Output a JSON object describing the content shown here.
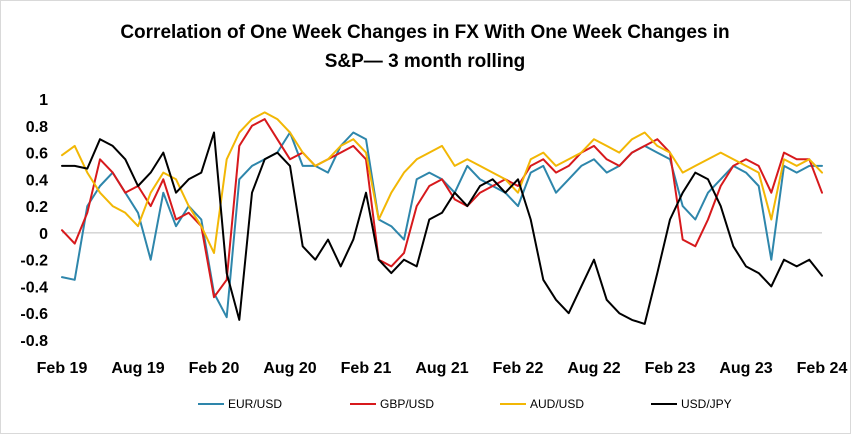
{
  "chart_data": {
    "type": "line",
    "title": "Correlation of One Week Changes in FX With One Week Changes in",
    "subtitle": "S&P— 3 month rolling",
    "xlabel": "",
    "ylabel": "",
    "ylim": [
      -0.8,
      1
    ],
    "yticks": [
      "1",
      "0.8",
      "0.6",
      "0.4",
      "0.2",
      "0",
      "-0.2",
      "-0.4",
      "-0.6",
      "-0.8"
    ],
    "xticks": [
      "Feb 19",
      "Aug 19",
      "Feb 20",
      "Aug 20",
      "Feb 21",
      "Aug 21",
      "Feb 22",
      "Aug 22",
      "Feb 23",
      "Aug 23",
      "Feb 24"
    ],
    "xlim": [
      "2019-02",
      "2024-02"
    ],
    "grid": false,
    "legend_position": "bottom",
    "series": [
      {
        "name": "EUR/USD",
        "color": "#2E86AB",
        "x": [
          "2019-02",
          "2019-03",
          "2019-04",
          "2019-05",
          "2019-06",
          "2019-07",
          "2019-08",
          "2019-09",
          "2019-10",
          "2019-11",
          "2019-12",
          "2020-01",
          "2020-02",
          "2020-03",
          "2020-04",
          "2020-05",
          "2020-06",
          "2020-07",
          "2020-08",
          "2020-09",
          "2020-10",
          "2020-11",
          "2020-12",
          "2021-01",
          "2021-02",
          "2021-03",
          "2021-04",
          "2021-05",
          "2021-06",
          "2021-07",
          "2021-08",
          "2021-09",
          "2021-10",
          "2021-11",
          "2021-12",
          "2022-01",
          "2022-02",
          "2022-03",
          "2022-04",
          "2022-05",
          "2022-06",
          "2022-07",
          "2022-08",
          "2022-09",
          "2022-10",
          "2022-11",
          "2022-12",
          "2023-01",
          "2023-02",
          "2023-03",
          "2023-04",
          "2023-05",
          "2023-06",
          "2023-07",
          "2023-08",
          "2023-09",
          "2023-10",
          "2023-11",
          "2023-12",
          "2024-01",
          "2024-02"
        ],
        "values": [
          -0.33,
          -0.35,
          0.2,
          0.35,
          0.45,
          0.3,
          0.15,
          -0.2,
          0.3,
          0.05,
          0.2,
          0.1,
          -0.45,
          -0.63,
          0.4,
          0.5,
          0.55,
          0.6,
          0.75,
          0.5,
          0.5,
          0.45,
          0.65,
          0.75,
          0.7,
          0.1,
          0.05,
          -0.05,
          0.4,
          0.45,
          0.4,
          0.3,
          0.5,
          0.4,
          0.35,
          0.3,
          0.2,
          0.45,
          0.5,
          0.3,
          0.4,
          0.5,
          0.55,
          0.45,
          0.5,
          0.6,
          0.65,
          0.6,
          0.55,
          0.2,
          0.1,
          0.3,
          0.4,
          0.5,
          0.45,
          0.35,
          -0.2,
          0.5,
          0.45,
          0.5,
          0.5
        ]
      },
      {
        "name": "GBP/USD",
        "color": "#D7191C",
        "x": [
          "2019-02",
          "2019-03",
          "2019-04",
          "2019-05",
          "2019-06",
          "2019-07",
          "2019-08",
          "2019-09",
          "2019-10",
          "2019-11",
          "2019-12",
          "2020-01",
          "2020-02",
          "2020-03",
          "2020-04",
          "2020-05",
          "2020-06",
          "2020-07",
          "2020-08",
          "2020-09",
          "2020-10",
          "2020-11",
          "2020-12",
          "2021-01",
          "2021-02",
          "2021-03",
          "2021-04",
          "2021-05",
          "2021-06",
          "2021-07",
          "2021-08",
          "2021-09",
          "2021-10",
          "2021-11",
          "2021-12",
          "2022-01",
          "2022-02",
          "2022-03",
          "2022-04",
          "2022-05",
          "2022-06",
          "2022-07",
          "2022-08",
          "2022-09",
          "2022-10",
          "2022-11",
          "2022-12",
          "2023-01",
          "2023-02",
          "2023-03",
          "2023-04",
          "2023-05",
          "2023-06",
          "2023-07",
          "2023-08",
          "2023-09",
          "2023-10",
          "2023-11",
          "2023-12",
          "2024-01",
          "2024-02"
        ],
        "values": [
          0.02,
          -0.08,
          0.15,
          0.55,
          0.45,
          0.3,
          0.35,
          0.2,
          0.4,
          0.1,
          0.15,
          0.05,
          -0.48,
          -0.35,
          0.65,
          0.8,
          0.85,
          0.7,
          0.55,
          0.6,
          0.5,
          0.55,
          0.6,
          0.65,
          0.55,
          -0.2,
          -0.25,
          -0.15,
          0.2,
          0.35,
          0.4,
          0.25,
          0.2,
          0.3,
          0.35,
          0.4,
          0.35,
          0.5,
          0.55,
          0.45,
          0.5,
          0.6,
          0.65,
          0.55,
          0.5,
          0.6,
          0.65,
          0.7,
          0.6,
          -0.05,
          -0.1,
          0.1,
          0.35,
          0.5,
          0.55,
          0.5,
          0.3,
          0.6,
          0.55,
          0.55,
          0.3
        ]
      },
      {
        "name": "AUD/USD",
        "color": "#F2B705",
        "x": [
          "2019-02",
          "2019-03",
          "2019-04",
          "2019-05",
          "2019-06",
          "2019-07",
          "2019-08",
          "2019-09",
          "2019-10",
          "2019-11",
          "2019-12",
          "2020-01",
          "2020-02",
          "2020-03",
          "2020-04",
          "2020-05",
          "2020-06",
          "2020-07",
          "2020-08",
          "2020-09",
          "2020-10",
          "2020-11",
          "2020-12",
          "2021-01",
          "2021-02",
          "2021-03",
          "2021-04",
          "2021-05",
          "2021-06",
          "2021-07",
          "2021-08",
          "2021-09",
          "2021-10",
          "2021-11",
          "2021-12",
          "2022-01",
          "2022-02",
          "2022-03",
          "2022-04",
          "2022-05",
          "2022-06",
          "2022-07",
          "2022-08",
          "2022-09",
          "2022-10",
          "2022-11",
          "2022-12",
          "2023-01",
          "2023-02",
          "2023-03",
          "2023-04",
          "2023-05",
          "2023-06",
          "2023-07",
          "2023-08",
          "2023-09",
          "2023-10",
          "2023-11",
          "2023-12",
          "2024-01",
          "2024-02"
        ],
        "values": [
          0.58,
          0.65,
          0.45,
          0.3,
          0.2,
          0.15,
          0.05,
          0.3,
          0.45,
          0.4,
          0.2,
          0.05,
          -0.15,
          0.55,
          0.75,
          0.85,
          0.9,
          0.85,
          0.75,
          0.6,
          0.5,
          0.55,
          0.65,
          0.7,
          0.6,
          0.1,
          0.3,
          0.45,
          0.55,
          0.6,
          0.65,
          0.5,
          0.55,
          0.5,
          0.45,
          0.4,
          0.3,
          0.55,
          0.6,
          0.5,
          0.55,
          0.6,
          0.7,
          0.65,
          0.6,
          0.7,
          0.75,
          0.65,
          0.6,
          0.45,
          0.5,
          0.55,
          0.6,
          0.55,
          0.5,
          0.45,
          0.1,
          0.55,
          0.5,
          0.55,
          0.45
        ]
      },
      {
        "name": "USD/JPY",
        "color": "#000000",
        "x": [
          "2019-02",
          "2019-03",
          "2019-04",
          "2019-05",
          "2019-06",
          "2019-07",
          "2019-08",
          "2019-09",
          "2019-10",
          "2019-11",
          "2019-12",
          "2020-01",
          "2020-02",
          "2020-03",
          "2020-04",
          "2020-05",
          "2020-06",
          "2020-07",
          "2020-08",
          "2020-09",
          "2020-10",
          "2020-11",
          "2020-12",
          "2021-01",
          "2021-02",
          "2021-03",
          "2021-04",
          "2021-05",
          "2021-06",
          "2021-07",
          "2021-08",
          "2021-09",
          "2021-10",
          "2021-11",
          "2021-12",
          "2022-01",
          "2022-02",
          "2022-03",
          "2022-04",
          "2022-05",
          "2022-06",
          "2022-07",
          "2022-08",
          "2022-09",
          "2022-10",
          "2022-11",
          "2022-12",
          "2023-01",
          "2023-02",
          "2023-03",
          "2023-04",
          "2023-05",
          "2023-06",
          "2023-07",
          "2023-08",
          "2023-09",
          "2023-10",
          "2023-11",
          "2023-12",
          "2024-01",
          "2024-02"
        ],
        "values": [
          0.5,
          0.5,
          0.48,
          0.7,
          0.65,
          0.55,
          0.35,
          0.45,
          0.6,
          0.3,
          0.4,
          0.45,
          0.75,
          -0.3,
          -0.65,
          0.3,
          0.55,
          0.6,
          0.5,
          -0.1,
          -0.2,
          -0.05,
          -0.25,
          -0.05,
          0.3,
          -0.2,
          -0.3,
          -0.2,
          -0.25,
          0.1,
          0.15,
          0.3,
          0.2,
          0.35,
          0.4,
          0.3,
          0.4,
          0.1,
          -0.35,
          -0.5,
          -0.6,
          -0.4,
          -0.2,
          -0.5,
          -0.6,
          -0.65,
          -0.68,
          -0.3,
          0.1,
          0.3,
          0.45,
          0.4,
          0.2,
          -0.1,
          -0.25,
          -0.3,
          -0.4,
          -0.2,
          -0.25,
          -0.2,
          -0.32
        ]
      }
    ]
  }
}
